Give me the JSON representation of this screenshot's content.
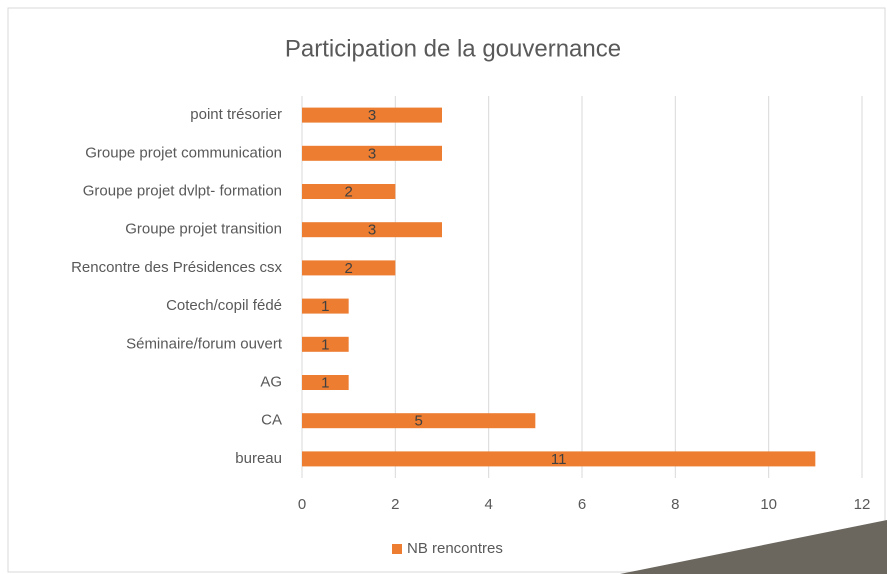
{
  "chart_data": {
    "type": "bar",
    "orientation": "horizontal",
    "title": "Participation de la gouvernance",
    "categories": [
      "point trésorier",
      "Groupe projet communication",
      "Groupe projet dvlpt- formation",
      "Groupe projet transition",
      "Rencontre des Présidences csx",
      "Cotech/copil fédé",
      "Séminaire/forum ouvert",
      "AG",
      "CA",
      "bureau"
    ],
    "series": [
      {
        "name": "NB rencontres",
        "color": "#ed7d31",
        "values": [
          3,
          3,
          2,
          3,
          2,
          1,
          1,
          1,
          5,
          11
        ]
      }
    ],
    "xlim": [
      0,
      12
    ],
    "xticks": [
      0,
      2,
      4,
      6,
      8,
      10,
      12
    ],
    "grid": true,
    "legend": "bottom"
  }
}
